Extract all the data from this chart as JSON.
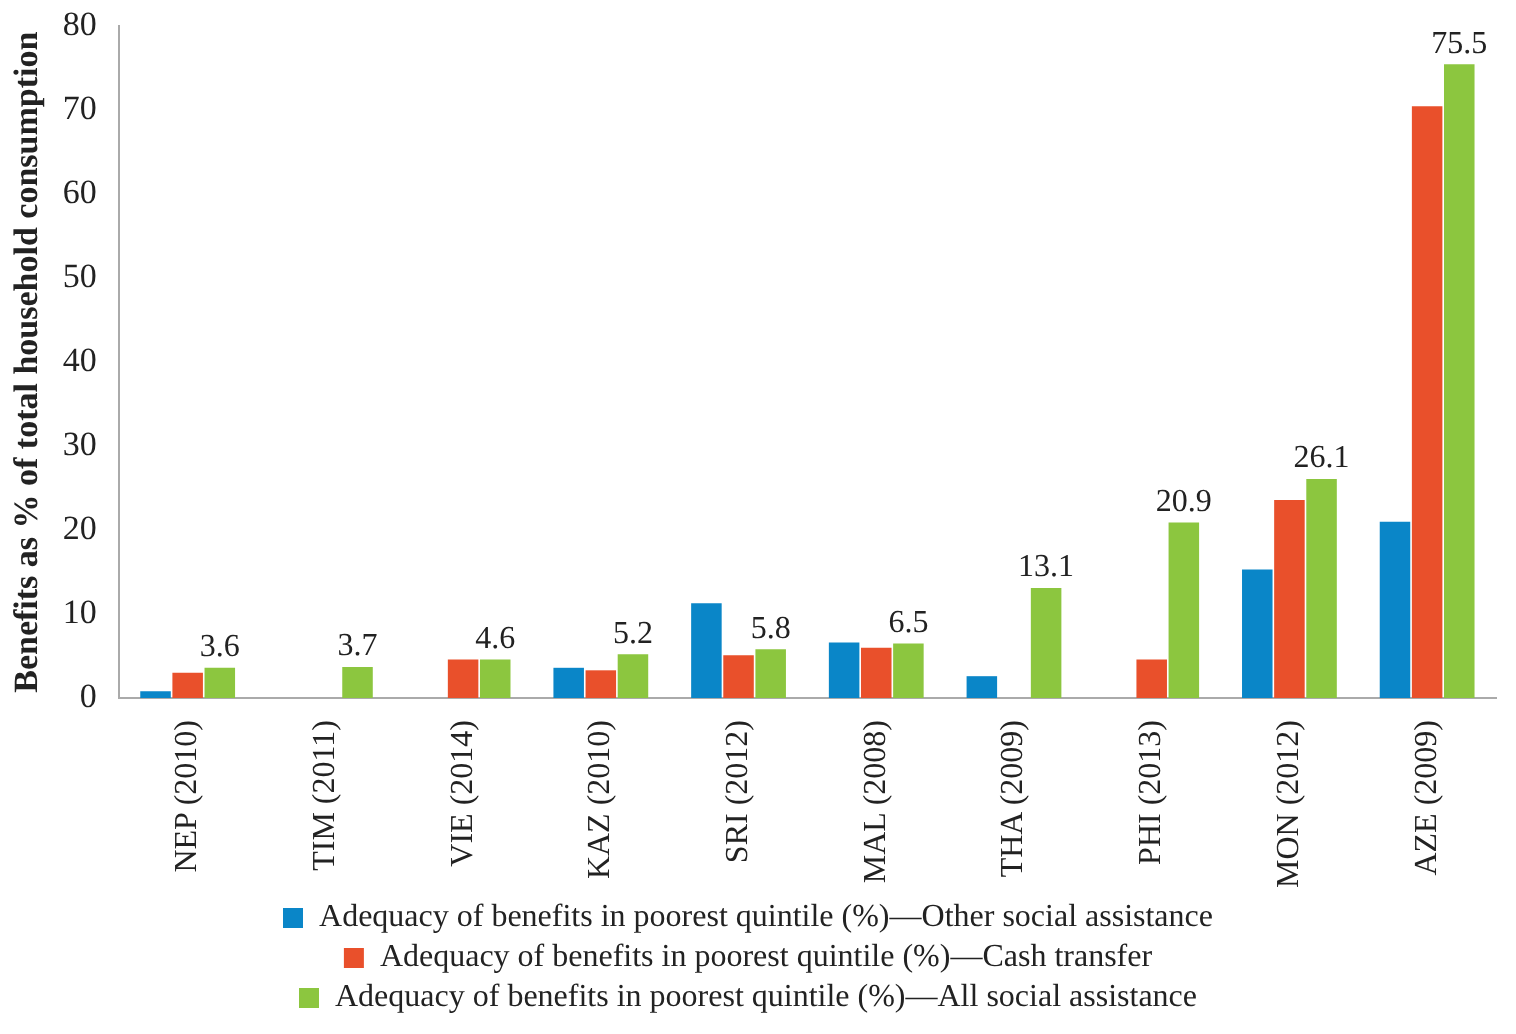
{
  "chart_data": {
    "type": "bar",
    "ylabel": "Benefits as % of total household consumption",
    "categories": [
      "NEP (2010)",
      "TIM (2011)",
      "VIE (2014)",
      "KAZ (2010)",
      "SRI (2012)",
      "MAL (2008)",
      "THA (2009)",
      "PHI (2013)",
      "MON (2012)",
      "AZE (2009)"
    ],
    "series": [
      {
        "name": "Adequacy of benefits in poorest quintile (%)—Other social assistance",
        "color": "#0a86c8",
        "values": [
          0.8,
          null,
          null,
          3.6,
          11.3,
          6.6,
          2.6,
          null,
          15.3,
          21.0
        ]
      },
      {
        "name": "Adequacy of benefits in poorest quintile (%)—Cash transfer",
        "color": "#e9502b",
        "values": [
          3.0,
          null,
          4.6,
          3.3,
          5.1,
          6.0,
          null,
          4.6,
          23.6,
          70.5
        ]
      },
      {
        "name": "Adequacy of benefits in poorest quintile (%)—All social assistance",
        "color": "#8cc63f",
        "values": [
          3.6,
          3.7,
          4.6,
          5.2,
          5.8,
          6.5,
          13.1,
          20.9,
          26.1,
          75.5
        ],
        "value_labels": [
          "3.6",
          "3.7",
          "4.6",
          "5.2",
          "5.8",
          "6.5",
          "13.1",
          "20.9",
          "26.1",
          "75.5"
        ]
      }
    ],
    "ylim": [
      0,
      80
    ],
    "yticks": [
      0,
      10,
      20,
      30,
      40,
      50,
      60,
      70,
      80
    ],
    "grid": false,
    "legend": "bottom"
  }
}
